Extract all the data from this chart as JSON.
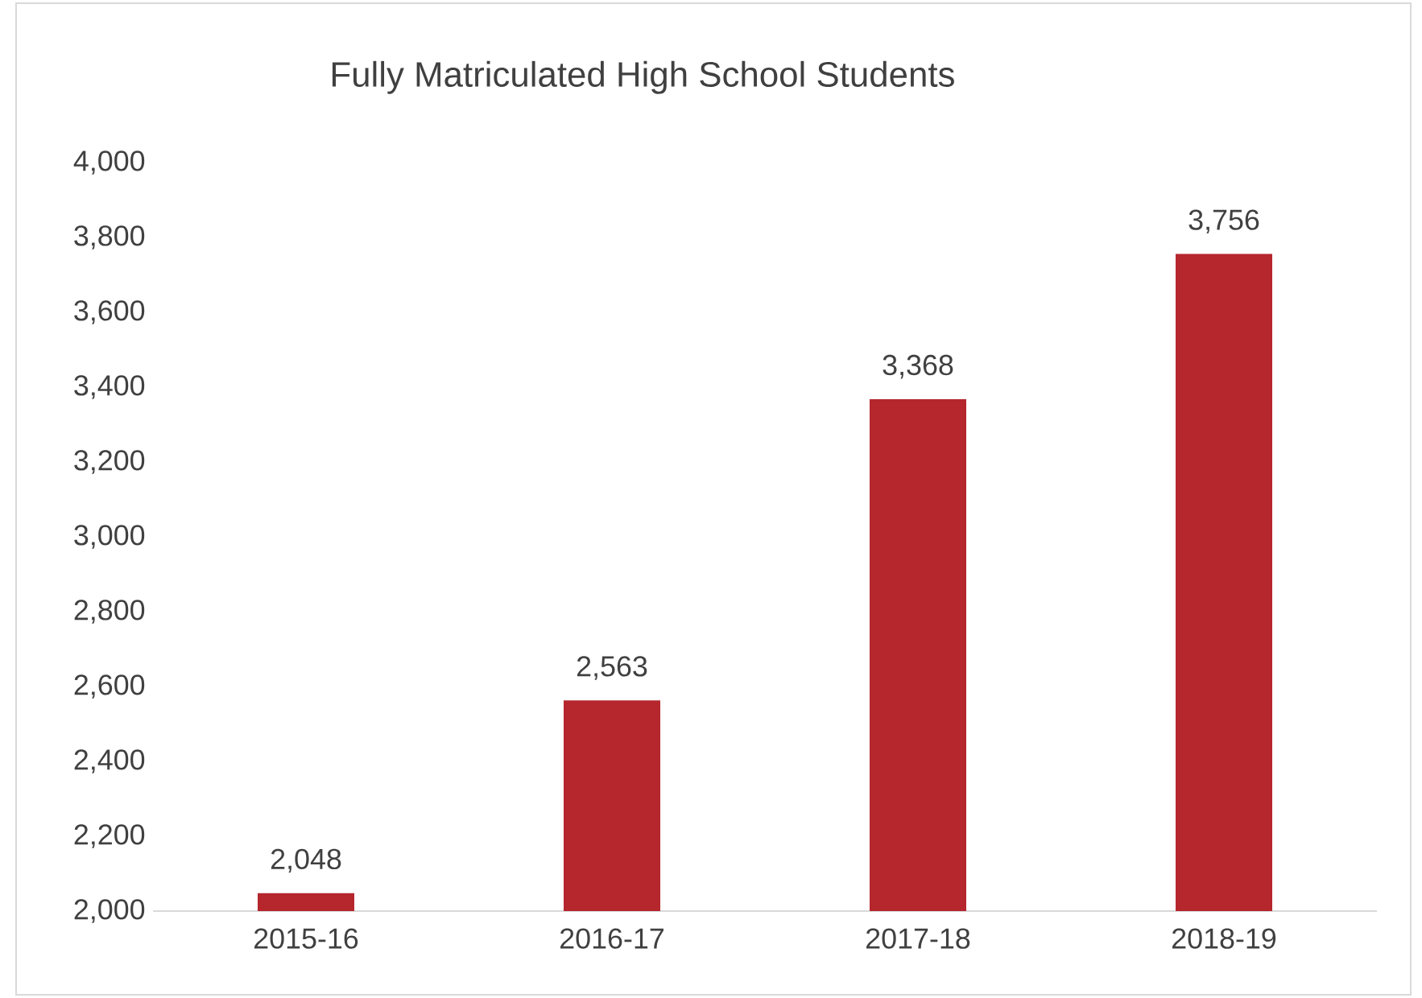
{
  "chart_data": {
    "type": "bar",
    "title": "Fully Matriculated High School Students",
    "categories": [
      "2015-16",
      "2016-17",
      "2017-18",
      "2018-19"
    ],
    "values": [
      2048,
      2563,
      3368,
      3756
    ],
    "value_labels": [
      "2,048",
      "2,563",
      "3,368",
      "3,756"
    ],
    "color": "#b5262d",
    "ylim": [
      2000,
      4000
    ],
    "yticks": [
      {
        "value": 2000,
        "label": "2,000"
      },
      {
        "value": 2200,
        "label": "2,200"
      },
      {
        "value": 2400,
        "label": "2,400"
      },
      {
        "value": 2600,
        "label": "2,600"
      },
      {
        "value": 2800,
        "label": "2,800"
      },
      {
        "value": 3000,
        "label": "3,000"
      },
      {
        "value": 3200,
        "label": "3,200"
      },
      {
        "value": 3400,
        "label": "3,400"
      },
      {
        "value": 3600,
        "label": "3,600"
      },
      {
        "value": 3800,
        "label": "3,800"
      },
      {
        "value": 4000,
        "label": "4,000"
      }
    ],
    "grid": false
  }
}
